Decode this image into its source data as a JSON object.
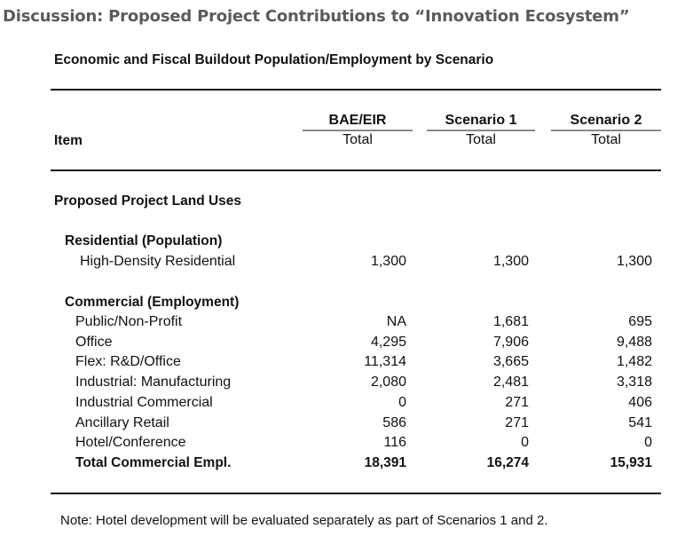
{
  "title": "Discussion: Proposed Project Contributions to “Innovation Ecosystem”",
  "subtitle": "Economic and Fiscal Buildout Population/Employment by Scenario",
  "table": {
    "item_header": "Item",
    "columns": [
      {
        "name": "BAE/EIR",
        "sub": "Total"
      },
      {
        "name": "Scenario 1",
        "sub": "Total"
      },
      {
        "name": "Scenario 2",
        "sub": "Total"
      }
    ],
    "section": "Proposed Project Land Uses",
    "residential": {
      "heading": "Residential (Population)",
      "rows": [
        {
          "label": "High-Density Residential",
          "values": [
            "1,300",
            "1,300",
            "1,300"
          ]
        }
      ]
    },
    "commercial": {
      "heading": "Commercial (Employment)",
      "rows": [
        {
          "label": "Public/Non-Profit",
          "values": [
            "NA",
            "1,681",
            "695"
          ]
        },
        {
          "label": "Office",
          "values": [
            "4,295",
            "7,906",
            "9,488"
          ]
        },
        {
          "label": "Flex: R&D/Office",
          "values": [
            "11,314",
            "3,665",
            "1,482"
          ]
        },
        {
          "label": "Industrial: Manufacturing",
          "values": [
            "2,080",
            "2,481",
            "3,318"
          ]
        },
        {
          "label": "Industrial Commercial",
          "values": [
            "0",
            "271",
            "406"
          ]
        },
        {
          "label": "Ancillary Retail",
          "values": [
            "586",
            "271",
            "541"
          ]
        },
        {
          "label": "Hotel/Conference",
          "values": [
            "116",
            "0",
            "0"
          ]
        }
      ],
      "total": {
        "label": "Total Commercial Empl.",
        "values": [
          "18,391",
          "16,274",
          "15,931"
        ]
      }
    }
  },
  "note": "Note: Hotel development will be evaluated separately as part of Scenarios 1 and 2."
}
